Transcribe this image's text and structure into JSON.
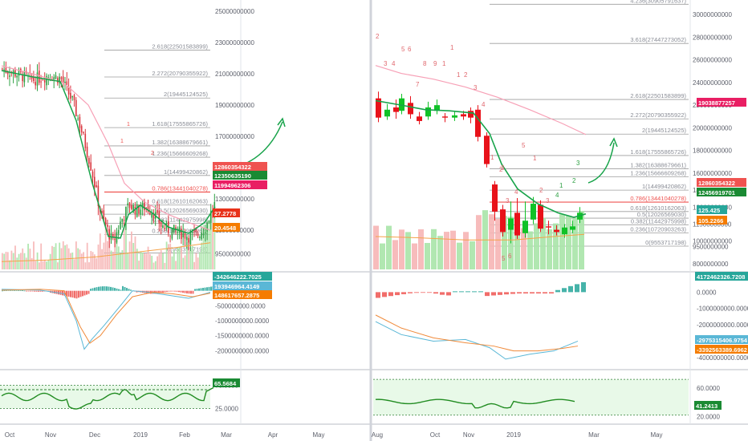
{
  "colors": {
    "up": "#26a69a",
    "down": "#ef5350",
    "candle_up": "#10c227",
    "candle_down": "#e8121a",
    "ema": "#17a34a",
    "slow_ma": "#f7a0b6",
    "orange_ma": "#f5a248",
    "fib_line": "#9e9e9e",
    "fib_key": "#ef5350",
    "arrow": "#18a34a",
    "rsi_line": "#218c21",
    "rsi_zone": "#e8f9e8",
    "vol_up": "#a9e4a9",
    "vol_down": "#f6b5b5",
    "macd_pos": "#26a69a",
    "macd_neg": "#ef5350",
    "macd_line": "#5ab7d6",
    "signal_line": "#f08a3a"
  },
  "icons": [
    "trend-arrow-icon"
  ],
  "chart_data": [
    {
      "type": "candlestick",
      "panel": "left-price",
      "x_ticks": [
        "Oct",
        "Nov",
        "Dec",
        "2019",
        "Feb",
        "Mar",
        "Apr",
        "May"
      ],
      "y_ticks": [
        "25000000000",
        "23000000000",
        "21000000000",
        "19000000000",
        "17000000000",
        "15000000000",
        "13000000000",
        "11000000000",
        "9500000000"
      ],
      "fib_levels": [
        {
          "label": "2.618(22501583899)",
          "value": 22501583899,
          "key": false
        },
        {
          "label": "2.272(20790355922)",
          "value": 20790355922,
          "key": false
        },
        {
          "label": "2(19445124525)",
          "value": 19445124525,
          "key": false
        },
        {
          "label": "1.618(17555865726)",
          "value": 17555865726,
          "key": false
        },
        {
          "label": "1.382(16388679661)",
          "value": 16388679661,
          "key": false
        },
        {
          "label": "1.236(15666609268)",
          "value": 15666609268,
          "key": false
        },
        {
          "label": "1(14499420862)",
          "value": 14499420862,
          "key": false
        },
        {
          "label": "0.786(13441040278)",
          "value": 13441040278,
          "key": true
        },
        {
          "label": "0.618(12610162063)",
          "value": 12610162063,
          "key": false
        },
        {
          "label": "0.5(12026569030)",
          "value": 12026569030,
          "key": false
        },
        {
          "label": "0.382(11442975998)",
          "value": 11442975998,
          "key": false
        },
        {
          "label": "0.236(10720903263)",
          "value": 10720903263,
          "key": false
        },
        {
          "label": "0(9553717198)",
          "value": 9553717198,
          "key": false
        }
      ],
      "price_badges": [
        "12860354322",
        "12350635190",
        "11994962306",
        "27.2778",
        "20.4548"
      ],
      "ylim": [
        8500000000,
        25500000000
      ]
    },
    {
      "type": "macd",
      "panel": "left-macd",
      "y_ticks": [
        "0",
        "-500000000.0000",
        "-1000000000.0000",
        "-1500000000.0000",
        "-2000000000.0000"
      ],
      "badges": [
        "-342646222.7025",
        "193946964.4149",
        "148617657.2875"
      ],
      "ylim": [
        -2500000000,
        500000000
      ]
    },
    {
      "type": "line",
      "panel": "left-rsi",
      "y_ticks": [
        "75.0000",
        "25.0000"
      ],
      "badge": "65.5684",
      "ylim": [
        0,
        100
      ]
    },
    {
      "type": "candlestick",
      "panel": "right-price",
      "x_ticks": [
        "Aug",
        "Oct",
        "Nov",
        "2019",
        "Mar",
        "May"
      ],
      "y_ticks": [
        "30000000000",
        "28000000000",
        "26000000000",
        "24000000000",
        "22000000000",
        "20000000000",
        "18000000000",
        "16000000000",
        "14500000000",
        "13000000000",
        "11500000000",
        "10000000000",
        "9500000000",
        "8000000000"
      ],
      "fib_levels": [
        {
          "label": "4.236(30905791637)",
          "value": 30905791637,
          "key": false
        },
        {
          "label": "3.618(27447273052)",
          "value": 27447273052,
          "key": false
        },
        {
          "label": "2.618(22501583899)",
          "value": 22501583899,
          "key": false
        },
        {
          "label": "2.272(20790355922)",
          "value": 20790355922,
          "key": false
        },
        {
          "label": "2(19445124525)",
          "value": 19445124525,
          "key": false
        },
        {
          "label": "1.618(17555865726)",
          "value": 17555865726,
          "key": false
        },
        {
          "label": "1.382(16388679661)",
          "value": 16388679661,
          "key": false
        },
        {
          "label": "1.236(15666609268)",
          "value": 15666609268,
          "key": false
        },
        {
          "label": "1(14499420862)",
          "value": 14499420862,
          "key": false
        },
        {
          "label": "0.786(13441040278)",
          "value": 13441040278,
          "key": true
        },
        {
          "label": "0.618(12610162063)",
          "value": 12610162063,
          "key": false
        },
        {
          "label": "0.5(12026569030)",
          "value": 12026569030,
          "key": false
        },
        {
          "label": "0.382(11442975998)",
          "value": 11442975998,
          "key": false
        },
        {
          "label": "0.236(10720903263)",
          "value": 10720903263,
          "key": false
        },
        {
          "label": "0(9553717198)",
          "value": 9553717198,
          "key": false
        }
      ],
      "price_badges": [
        "19038877257",
        "12860354322",
        "12456919701",
        "125.425",
        "105.2266"
      ],
      "ylim": [
        7500000000,
        31000000000
      ]
    },
    {
      "type": "macd",
      "panel": "right-macd",
      "y_ticks": [
        "0.0000",
        "-1000000000.0000",
        "-2000000000.0000",
        "-3000000000.0000",
        "-4000000000.0000"
      ],
      "badges": [
        "4172462326.7208",
        "-2975315406.9754",
        "-3392563389.6962"
      ],
      "ylim": [
        -4500000000,
        1000000000
      ]
    },
    {
      "type": "line",
      "panel": "right-rsi",
      "y_ticks": [
        "60.0000",
        "20.0000"
      ],
      "badge": "41.2413",
      "ylim": [
        15,
        80
      ]
    }
  ],
  "td_labels_left": [
    "1",
    "1",
    "2"
  ],
  "td_labels_right": [
    "2",
    "3",
    "4",
    "5",
    "6",
    "7",
    "8",
    "9",
    "1",
    "1",
    "1",
    "2",
    "3",
    "4",
    "1",
    "2",
    "3",
    "4",
    "5",
    "1",
    "2",
    "3",
    "4",
    "1",
    "2",
    "3",
    "5",
    "6",
    "3"
  ]
}
